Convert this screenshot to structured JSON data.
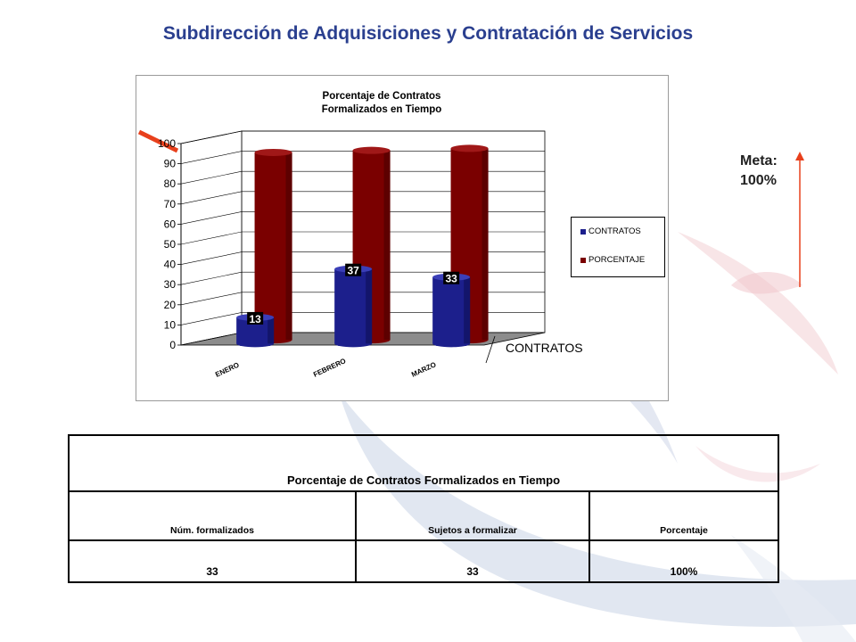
{
  "page": {
    "title": "Subdirección de Adquisiciones y Contratación de Servicios",
    "goal": {
      "label": "Meta:",
      "value": "100%"
    }
  },
  "colors": {
    "title": "#2a3f8f",
    "contratos": "#1c1f8c",
    "porcentaje": "#7a0000",
    "arrow": "#e8401c"
  },
  "chart_data": {
    "type": "bar",
    "title_lines": [
      "Porcentaje de Contratos",
      "Formalizados en Tiempo"
    ],
    "categories": [
      "ENERO",
      "FEBRERO",
      "MARZO"
    ],
    "series": [
      {
        "name": "CONTRATOS",
        "values": [
          13,
          37,
          33
        ],
        "data_labels": [
          "13",
          "37",
          "33"
        ]
      },
      {
        "name": "PORCENTAJE",
        "values": [
          93,
          94,
          95
        ]
      }
    ],
    "y_ticks": [
      "0",
      "10",
      "20",
      "30",
      "40",
      "50",
      "60",
      "70",
      "80",
      "90",
      "100"
    ],
    "ylim": [
      0,
      100
    ],
    "depth_axis_label": "CONTRATOS",
    "grid": true,
    "legend_position": "right"
  },
  "table": {
    "title": "Porcentaje de Contratos Formalizados en Tiempo",
    "columns": [
      "Núm. formalizados",
      "Sujetos a formalizar",
      "Porcentaje"
    ],
    "values": [
      "33",
      "33",
      "100%"
    ]
  }
}
